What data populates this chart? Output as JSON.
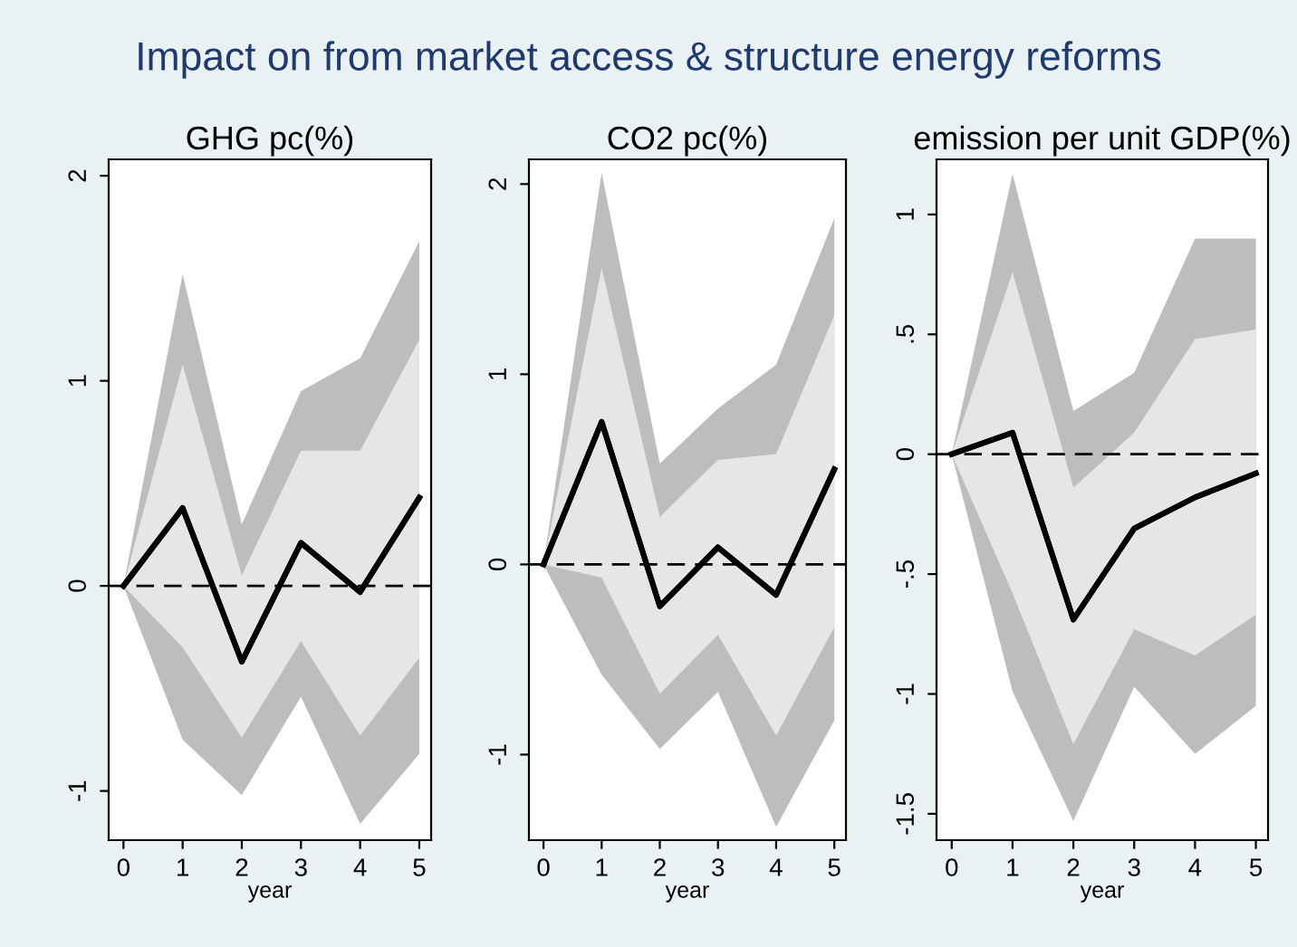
{
  "chart_data": [
    {
      "type": "line",
      "title": "GHG pc(%)",
      "xlabel": "year",
      "annotations": [
        "Impact on from market access & structure energy reforms"
      ],
      "x": [
        0,
        1,
        2,
        3,
        4,
        5
      ],
      "xlim": [
        -0.25,
        5.2
      ],
      "xticks": [
        0,
        1,
        2,
        3,
        4,
        5
      ],
      "ylim": [
        -1.24,
        2.08
      ],
      "yticks": [
        -1,
        0,
        1,
        2
      ],
      "series": [
        {
          "color": "#000000",
          "values": [
            0,
            0.38,
            -0.37,
            0.21,
            -0.03,
            0.43
          ],
          "lower": [
            0,
            -0.75,
            -1.02,
            -0.54,
            -1.16,
            -0.82
          ],
          "upper": [
            0,
            1.52,
            0.3,
            0.95,
            1.11,
            1.68
          ]
        },
        {
          "color": "#000000",
          "values": [
            0,
            0.38,
            -0.37,
            0.21,
            -0.03,
            0.43
          ],
          "lower": [
            0,
            -0.3,
            -0.74,
            -0.27,
            -0.73,
            -0.35
          ],
          "upper": [
            0,
            1.08,
            0.05,
            0.66,
            0.66,
            1.2
          ]
        }
      ],
      "ref_lines": [
        {
          "axis": "y",
          "value": 0,
          "color": "#000000",
          "line_style": "dashed"
        }
      ],
      "grid": false,
      "legend": false
    },
    {
      "type": "line",
      "title": "CO2 pc(%)",
      "xlabel": "year",
      "x": [
        0,
        1,
        2,
        3,
        4,
        5
      ],
      "xlim": [
        -0.25,
        5.2
      ],
      "xticks": [
        0,
        1,
        2,
        3,
        4,
        5
      ],
      "ylim": [
        -1.45,
        2.13
      ],
      "yticks": [
        -1,
        0,
        1,
        2
      ],
      "series": [
        {
          "color": "#000000",
          "values": [
            0,
            0.75,
            -0.22,
            0.09,
            -0.16,
            0.5
          ],
          "lower": [
            0,
            -0.58,
            -0.97,
            -0.67,
            -1.38,
            -0.82
          ],
          "upper": [
            0,
            2.06,
            0.53,
            0.82,
            1.05,
            1.82
          ]
        },
        {
          "color": "#000000",
          "values": [
            0,
            0.75,
            -0.22,
            0.09,
            -0.16,
            0.5
          ],
          "lower": [
            0,
            -0.07,
            -0.68,
            -0.37,
            -0.9,
            -0.33
          ],
          "upper": [
            0,
            1.56,
            0.25,
            0.55,
            0.58,
            1.31
          ]
        }
      ],
      "ref_lines": [
        {
          "axis": "y",
          "value": 0,
          "color": "#000000",
          "line_style": "dashed"
        }
      ],
      "grid": false,
      "legend": false
    },
    {
      "type": "line",
      "title": "emission per unit GDP(%)",
      "xlabel": "year",
      "x": [
        0,
        1,
        2,
        3,
        4,
        5
      ],
      "xlim": [
        -0.25,
        5.2
      ],
      "xticks": [
        0,
        1,
        2,
        3,
        4,
        5
      ],
      "ylim": [
        -1.61,
        1.23
      ],
      "yticks": [
        {
          "value": -1.5,
          "label": "-1.5"
        },
        -1,
        {
          "value": -0.5,
          "label": "-.5"
        },
        0,
        {
          "value": 0.5,
          "label": ".5"
        },
        1
      ],
      "series": [
        {
          "color": "#000000",
          "values": [
            0,
            0.09,
            -0.69,
            -0.31,
            -0.18,
            -0.08
          ],
          "lower": [
            0,
            -0.99,
            -1.53,
            -0.97,
            -1.25,
            -1.05
          ],
          "upper": [
            0,
            1.17,
            0.18,
            0.34,
            0.9,
            0.9
          ]
        },
        {
          "color": "#000000",
          "values": [
            0,
            0.09,
            -0.69,
            -0.31,
            -0.18,
            -0.08
          ],
          "lower": [
            0,
            -0.58,
            -1.21,
            -0.73,
            -0.84,
            -0.67
          ],
          "upper": [
            0,
            0.76,
            -0.14,
            0.09,
            0.48,
            0.52
          ]
        }
      ],
      "ref_lines": [
        {
          "axis": "y",
          "value": 0,
          "color": "#000000",
          "line_style": "dashed"
        }
      ],
      "grid": false,
      "legend": false
    }
  ]
}
